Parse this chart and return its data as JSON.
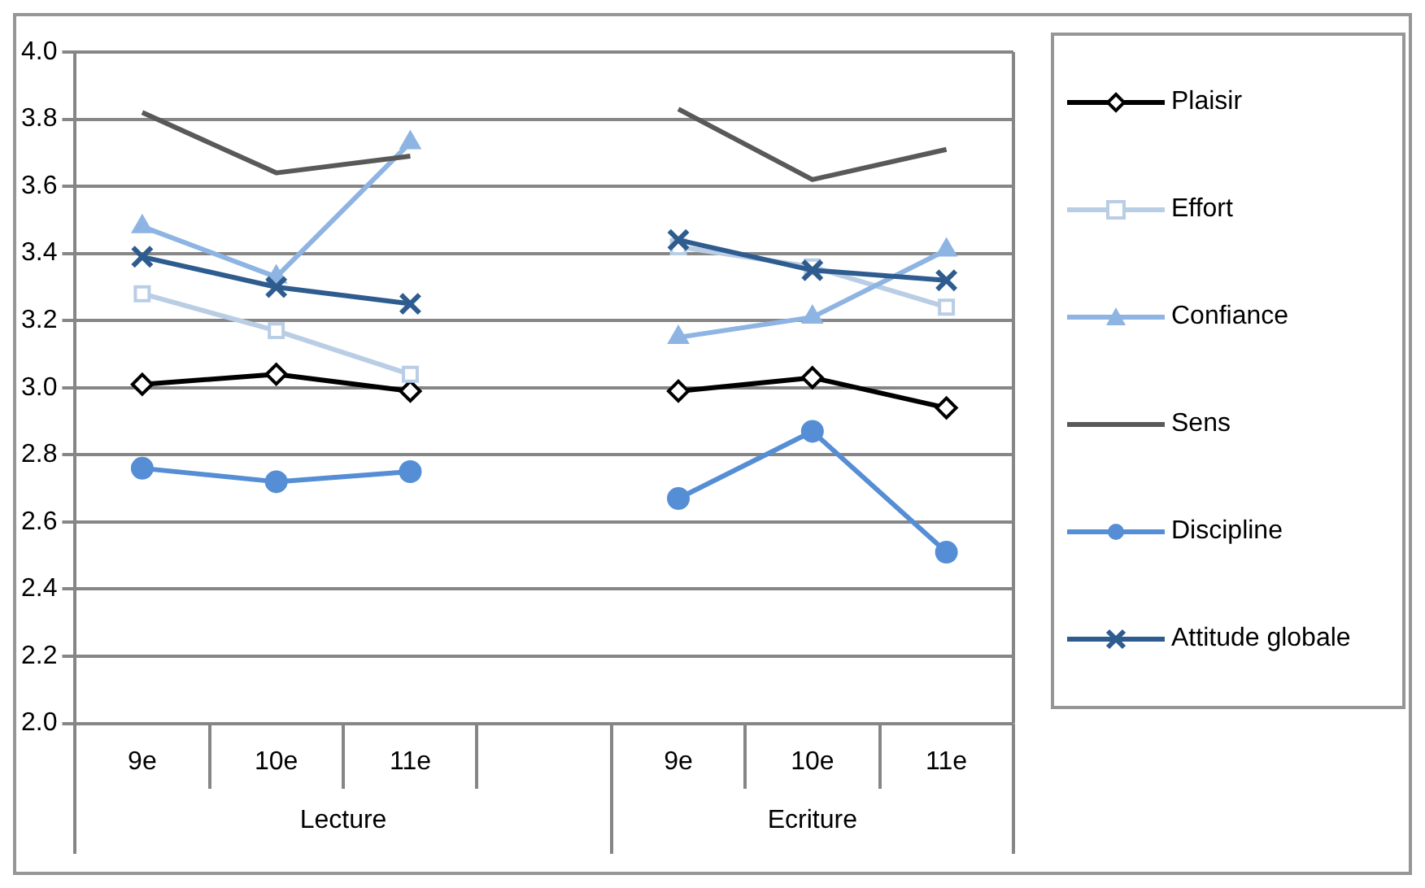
{
  "chart_data": {
    "type": "line",
    "categories": [
      "9e",
      "10e",
      "11e",
      null,
      "9e",
      "10e",
      "11e"
    ],
    "series": [
      {
        "name": "Plaisir",
        "color": "#000000",
        "marker": "diamond",
        "values": [
          3.01,
          3.04,
          2.99,
          null,
          2.99,
          3.03,
          2.94
        ]
      },
      {
        "name": "Effort",
        "color": "#b9cde5",
        "marker": "square",
        "values": [
          3.28,
          3.17,
          3.04,
          null,
          3.42,
          3.36,
          3.24
        ]
      },
      {
        "name": "Confiance",
        "color": "#8db4e2",
        "marker": "triangle",
        "values": [
          3.48,
          3.33,
          3.73,
          null,
          3.15,
          3.21,
          3.41
        ]
      },
      {
        "name": "Sens",
        "color": "#595959",
        "marker": "none",
        "values": [
          3.82,
          3.64,
          3.69,
          null,
          3.83,
          3.62,
          3.71
        ]
      },
      {
        "name": "Discipline",
        "color": "#558ed5",
        "marker": "circle",
        "values": [
          2.76,
          2.72,
          2.75,
          null,
          2.67,
          2.87,
          2.51
        ]
      },
      {
        "name": "Attitude globale",
        "color": "#2e5c8f",
        "marker": "cross",
        "values": [
          3.39,
          3.3,
          3.25,
          null,
          3.44,
          3.35,
          3.32
        ]
      }
    ],
    "annotations": [
      "Lecture",
      "Ecriture"
    ],
    "ylim": [
      2.0,
      4.0
    ],
    "yticks": [
      {
        "value": 2.0,
        "label": "2.0"
      },
      {
        "value": 2.2,
        "label": "2.2"
      },
      {
        "value": 2.4,
        "label": "2.4"
      },
      {
        "value": 2.6,
        "label": "2.6"
      },
      {
        "value": 2.8,
        "label": "2.8"
      },
      {
        "value": 3.0,
        "label": "3.0"
      },
      {
        "value": 3.2,
        "label": "3.2"
      },
      {
        "value": 3.4,
        "label": "3.4"
      },
      {
        "value": 3.6,
        "label": "3.6"
      },
      {
        "value": 3.8,
        "label": "3.8"
      },
      {
        "value": 4.0,
        "label": "4.0"
      }
    ],
    "grid": "y",
    "legend": "right"
  }
}
